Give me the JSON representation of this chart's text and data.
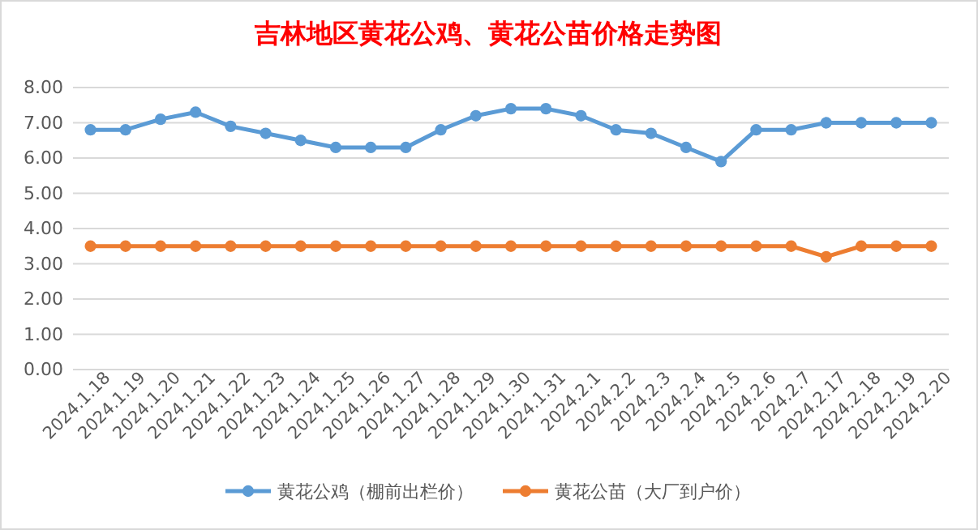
{
  "chart_data": {
    "type": "line",
    "title": "吉林地区黄花公鸡、黄花公苗价格走势图",
    "categories": [
      "2024.1.18",
      "2024.1.19",
      "2024.1.20",
      "2024.1.21",
      "2024.1.22",
      "2024.1.23",
      "2024.1.24",
      "2024.1.25",
      "2024.1.26",
      "2024.1.27",
      "2024.1.28",
      "2024.1.29",
      "2024.1.30",
      "2024.1.31",
      "2024.2.1",
      "2024.2.2",
      "2024.2.3",
      "2024.2.4",
      "2024.2.5",
      "2024.2.6",
      "2024.2.7",
      "2024.2.17",
      "2024.2.18",
      "2024.2.19",
      "2024.2.20"
    ],
    "series": [
      {
        "name": "黄花公鸡（棚前出栏价）",
        "color": "#5b9bd5",
        "values": [
          6.8,
          6.8,
          7.1,
          7.3,
          6.9,
          6.7,
          6.5,
          6.3,
          6.3,
          6.3,
          6.8,
          7.2,
          7.4,
          7.4,
          7.2,
          6.8,
          6.7,
          6.3,
          5.9,
          6.8,
          6.8,
          7.0,
          7.0,
          7.0,
          7.0
        ]
      },
      {
        "name": "黄花公苗（大厂到户价）",
        "color": "#ed7d31",
        "values": [
          3.5,
          3.5,
          3.5,
          3.5,
          3.5,
          3.5,
          3.5,
          3.5,
          3.5,
          3.5,
          3.5,
          3.5,
          3.5,
          3.5,
          3.5,
          3.5,
          3.5,
          3.5,
          3.5,
          3.5,
          3.5,
          3.2,
          3.5,
          3.5,
          3.5
        ]
      }
    ],
    "ylim": [
      0,
      8
    ],
    "yticks": [
      {
        "value": 0,
        "label": "0.00"
      },
      {
        "value": 1,
        "label": "1.00"
      },
      {
        "value": 2,
        "label": "2.00"
      },
      {
        "value": 3,
        "label": "3.00"
      },
      {
        "value": 4,
        "label": "4.00"
      },
      {
        "value": 5,
        "label": "5.00"
      },
      {
        "value": 6,
        "label": "6.00"
      },
      {
        "value": 7,
        "label": "7.00"
      },
      {
        "value": 8,
        "label": "8.00"
      }
    ],
    "grid": "y",
    "legend": "bottom",
    "marker": "circle",
    "line_style": "solid"
  }
}
